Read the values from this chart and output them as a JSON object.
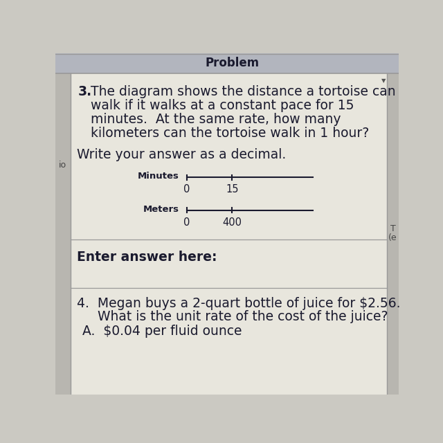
{
  "title": "Problem",
  "problem_number": "3.",
  "problem_text_lines": [
    "The diagram shows the distance a tortoise can",
    "walk if it walks at a constant pace for 15",
    "minutes.  At the same rate, how many",
    "kilometers can the tortoise walk in 1 hour?"
  ],
  "instruction_text": "Write your answer as a decimal.",
  "number_line_1_label": "Minutes",
  "number_line_1_tick0": "0",
  "number_line_1_tick1": "15",
  "number_line_2_label": "Meters",
  "number_line_2_tick0": "0",
  "number_line_2_tick1": "400",
  "answer_label": "Enter answer here:",
  "problem4_line1": "4.  Megan buys a 2-quart bottle of juice for $2.56.",
  "problem4_line2": "     What is the unit rate of the cost of the juice?",
  "problem4_choice": "A.  $0.04 per fluid ounce",
  "left_label": "io",
  "right_label_top": "T",
  "right_label_bottom": "(e",
  "bg_color": "#cbc9c2",
  "header_bg": "#b2b5be",
  "cell_bg": "#e8e6dd",
  "left_strip_color": "#b8b6b0",
  "right_strip_color": "#b8b6b0",
  "border_color": "#999999",
  "text_color": "#1a1a2e",
  "title_fontsize": 12,
  "body_fontsize": 13.5,
  "small_fontsize": 10.5,
  "nl_label_fontsize": 9.5
}
